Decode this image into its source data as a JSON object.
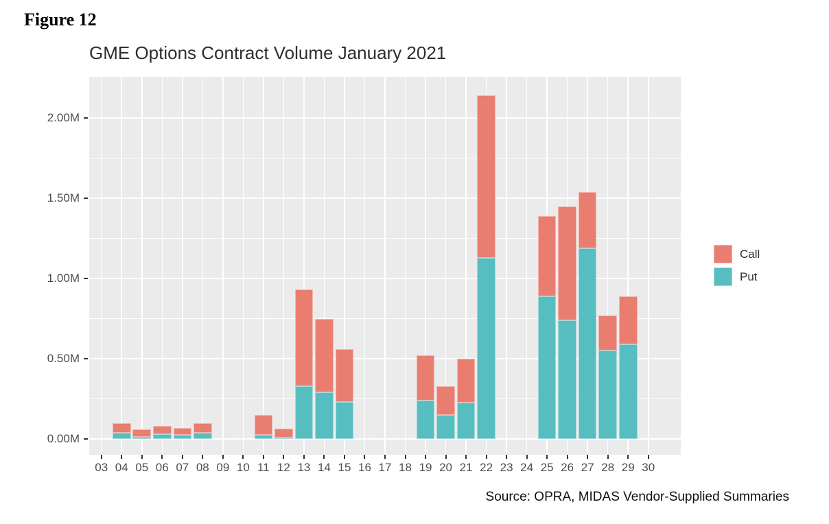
{
  "figure_label": "Figure 12",
  "chart_data": {
    "type": "bar",
    "stacked": true,
    "title": "GME Options Contract Volume January 2021",
    "xlabel": "",
    "ylabel": "",
    "unit": "millions of contracts",
    "categories": [
      "03",
      "04",
      "05",
      "06",
      "07",
      "08",
      "09",
      "10",
      "11",
      "12",
      "13",
      "14",
      "15",
      "16",
      "17",
      "18",
      "19",
      "20",
      "21",
      "22",
      "23",
      "24",
      "25",
      "26",
      "27",
      "28",
      "29",
      "30"
    ],
    "series": [
      {
        "name": "Call",
        "color": "#e87d70",
        "values": [
          0,
          0.06,
          0.045,
          0.05,
          0.045,
          0.06,
          0,
          0,
          0.125,
          0.055,
          0.6,
          0.46,
          0.33,
          0,
          0,
          0,
          0.28,
          0.18,
          0.275,
          1.01,
          0,
          0,
          0.5,
          0.71,
          0.35,
          0.22,
          0.3,
          0
        ]
      },
      {
        "name": "Put",
        "color": "#56bdc0",
        "values": [
          0,
          0.04,
          0.015,
          0.03,
          0.025,
          0.04,
          0,
          0,
          0.025,
          0.01,
          0.33,
          0.29,
          0.23,
          0,
          0,
          0,
          0.24,
          0.15,
          0.225,
          1.13,
          0,
          0,
          0.89,
          0.74,
          1.19,
          0.55,
          0.59,
          0
        ]
      }
    ],
    "ylim": [
      0,
      2.25
    ],
    "yticks": [
      {
        "value": 0.0,
        "label": "0.00M"
      },
      {
        "value": 0.5,
        "label": "0.50M"
      },
      {
        "value": 1.0,
        "label": "1.00M"
      },
      {
        "value": 1.5,
        "label": "1.50M"
      },
      {
        "value": 2.0,
        "label": "2.00M"
      }
    ],
    "minor_yticks": [
      0.25,
      0.75,
      1.25,
      1.75
    ],
    "grid": true,
    "panel_background": "#ebebeb",
    "gridline_color": "#ffffff",
    "legend_position": "right",
    "source_note": "Source: OPRA, MIDAS Vendor-Supplied Summaries"
  }
}
